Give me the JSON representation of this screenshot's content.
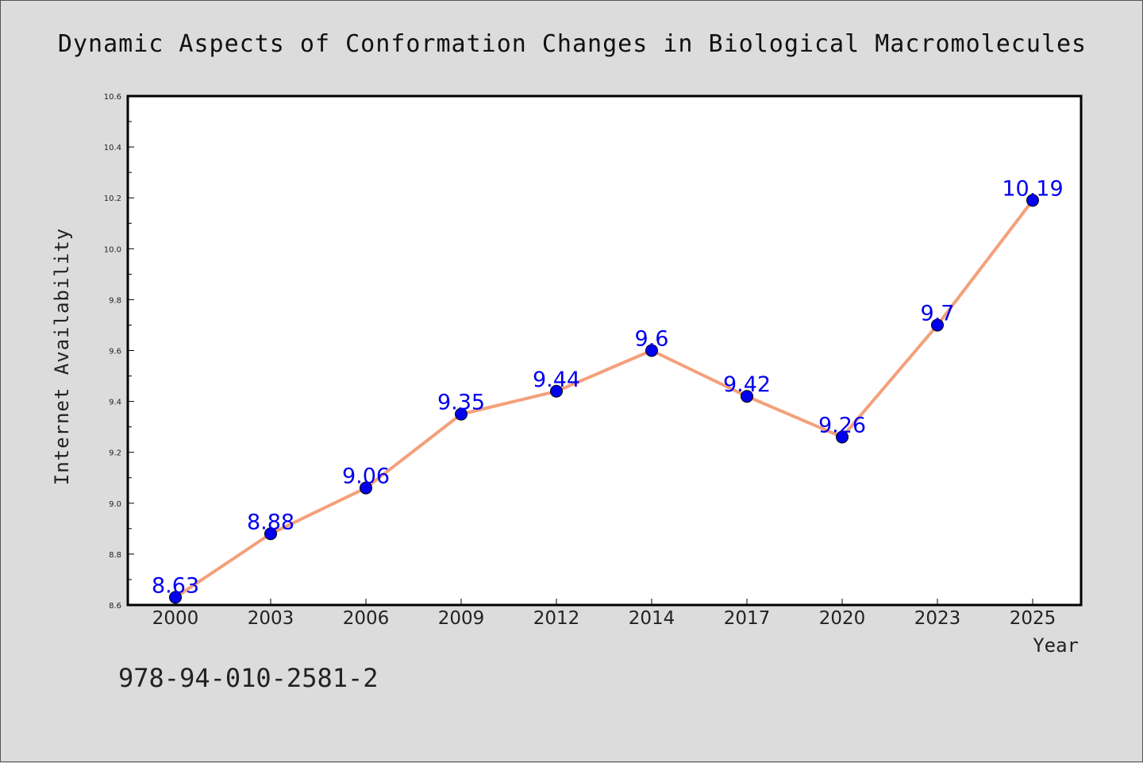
{
  "chart_data": {
    "type": "line",
    "title": "Dynamic Aspects of Conformation Changes in Biological Macromolecules",
    "xlabel": "Year",
    "ylabel": "Internet Availability",
    "categories": [
      "2000",
      "2003",
      "2006",
      "2009",
      "2012",
      "2014",
      "2017",
      "2020",
      "2023",
      "2025"
    ],
    "series": [
      {
        "values": [
          8.63,
          8.88,
          9.06,
          9.35,
          9.44,
          9.6,
          9.42,
          9.26,
          9.7,
          10.19
        ],
        "data_labels": [
          "8.63",
          "8.88",
          "9.06",
          "9.35",
          "9.44",
          "9.6",
          "9.42",
          "9.26",
          "9.7",
          "10.19"
        ],
        "line_color": "#f4a07a",
        "marker_color": "#0000ee"
      }
    ],
    "ylim": [
      8.6,
      10.6
    ],
    "yticks": [
      "8.6",
      "8.8",
      "9.0",
      "9.2",
      "9.4",
      "9.6",
      "9.8",
      "10.0",
      "10.2",
      "10.4",
      "10.6"
    ],
    "grid": false,
    "legend": "none",
    "background_color": "#dcdcdc",
    "plot_background_color": "#ffffff"
  },
  "footer": {
    "isbn": "978-94-010-2581-2"
  }
}
